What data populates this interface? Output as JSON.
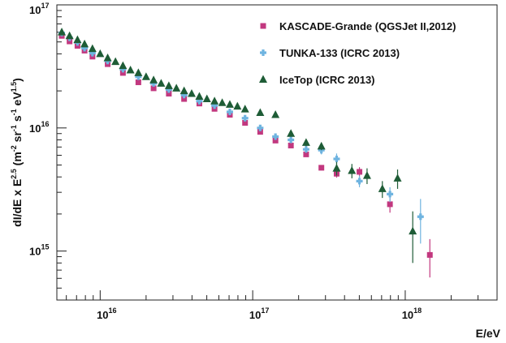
{
  "chart_data": {
    "type": "scatter",
    "xscale": "log",
    "yscale": "log",
    "xlim": [
      5200000000000000.0,
      4e+18
    ],
    "ylim": [
      400000000000000.0,
      1e+17
    ],
    "xlabel": "E/eV",
    "ylabel": {
      "base": "dI/dE x E",
      "exp1": "2.5",
      "mid1": " (m",
      "exp2": "-2",
      "mid2": " sr",
      "exp3": "-1",
      "mid3": " s",
      "exp4": "-1",
      "mid4": " eV",
      "exp5": "1.5",
      "end": ")"
    },
    "xticks": [
      {
        "value": 1e+16,
        "base": "10",
        "exp": "16"
      },
      {
        "value": 1e+17,
        "base": "10",
        "exp": "17"
      },
      {
        "value": 1e+18,
        "base": "10",
        "exp": "18"
      }
    ],
    "yticks": [
      {
        "value": 1000000000000000.0,
        "base": "10",
        "exp": "15"
      },
      {
        "value": 1e+16,
        "base": "10",
        "exp": "16"
      },
      {
        "value": 1e+17,
        "base": "10",
        "exp": "17"
      }
    ],
    "legend_position": "top-right",
    "series": [
      {
        "name": "KASCADE-Grande (QGSJet II,2012)",
        "marker": "square",
        "color": "#c2387f",
        "points": [
          {
            "x": 5600000000000000.0,
            "y": 5.6e+16
          },
          {
            "x": 6300000000000000.0,
            "y": 5.05e+16
          },
          {
            "x": 7100000000000000.0,
            "y": 4.65e+16
          },
          {
            "x": 7900000000000000.0,
            "y": 4.25e+16
          },
          {
            "x": 8900000000000000.0,
            "y": 3.8e+16
          },
          {
            "x": 1.12e+16,
            "y": 3.3e+16
          },
          {
            "x": 1.41e+16,
            "y": 2.8e+16
          },
          {
            "x": 1.78e+16,
            "y": 2.35e+16
          },
          {
            "x": 2.24e+16,
            "y": 2.1e+16
          },
          {
            "x": 2.82e+16,
            "y": 1.9e+16
          },
          {
            "x": 3.55e+16,
            "y": 1.72e+16
          },
          {
            "x": 4.47e+16,
            "y": 1.58e+16
          },
          {
            "x": 5.62e+16,
            "y": 1.43e+16
          },
          {
            "x": 7.08e+16,
            "y": 1.28e+16
          },
          {
            "x": 8.91e+16,
            "y": 1.1e+16
          },
          {
            "x": 1.12e+17,
            "y": 9300000000000000.0
          },
          {
            "x": 1.41e+17,
            "y": 7900000000000000.0
          },
          {
            "x": 1.78e+17,
            "y": 7200000000000000.0
          },
          {
            "x": 2.24e+17,
            "y": 6100000000000000.0
          },
          {
            "x": 2.82e+17,
            "y": 4750000000000000.0,
            "yerr": 200000000000000.0
          },
          {
            "x": 3.55e+17,
            "y": 4250000000000000.0,
            "yerr": 300000000000000.0
          },
          {
            "x": 5.01e+17,
            "y": 4400000000000000.0,
            "yerr": 400000000000000.0
          },
          {
            "x": 7.94e+17,
            "y": 2400000000000000.0,
            "yerr": 350000000000000.0
          },
          {
            "x": 1.45e+18,
            "y": 930000000000000.0,
            "yerr": 320000000000000.0
          }
        ]
      },
      {
        "name": "TUNKA-133 (ICRC 2013)",
        "marker": "cross",
        "color": "#6fb4e0",
        "points": [
          {
            "x": 5600000000000000.0,
            "y": 5.9e+16
          },
          {
            "x": 6300000000000000.0,
            "y": 5.4e+16
          },
          {
            "x": 7100000000000000.0,
            "y": 4.95e+16
          },
          {
            "x": 7900000000000000.0,
            "y": 4.45e+16
          },
          {
            "x": 8900000000000000.0,
            "y": 4.05e+16
          },
          {
            "x": 1.12e+16,
            "y": 3.5e+16
          },
          {
            "x": 1.41e+16,
            "y": 3e+16
          },
          {
            "x": 1.78e+16,
            "y": 2.6e+16
          },
          {
            "x": 2.24e+16,
            "y": 2.3e+16
          },
          {
            "x": 2.82e+16,
            "y": 2.05e+16
          },
          {
            "x": 3.55e+16,
            "y": 1.85e+16
          },
          {
            "x": 4.47e+16,
            "y": 1.65e+16
          },
          {
            "x": 5.62e+16,
            "y": 1.52e+16
          },
          {
            "x": 7.08e+16,
            "y": 1.35e+16
          },
          {
            "x": 8.91e+16,
            "y": 1.2e+16
          },
          {
            "x": 1.12e+17,
            "y": 1e+16
          },
          {
            "x": 1.41e+17,
            "y": 8500000000000000.0
          },
          {
            "x": 1.78e+17,
            "y": 8000000000000000.0
          },
          {
            "x": 2.24e+17,
            "y": 6700000000000000.0
          },
          {
            "x": 2.82e+17,
            "y": 6600000000000000.0,
            "yerr": 500000000000000.0
          },
          {
            "x": 3.55e+17,
            "y": 5600000000000000.0,
            "yerr": 600000000000000.0
          },
          {
            "x": 5.01e+17,
            "y": 3700000000000000.0,
            "yerr": 400000000000000.0
          },
          {
            "x": 7.94e+17,
            "y": 2900000000000000.0,
            "yerr": 400000000000000.0
          },
          {
            "x": 1.26e+18,
            "y": 1900000000000000.0,
            "yerr": 750000000000000.0
          }
        ]
      },
      {
        "name": "IceTop (ICRC 2013)",
        "marker": "triangle",
        "color": "#1e5c36",
        "points": [
          {
            "x": 5600000000000000.0,
            "y": 6e+16
          },
          {
            "x": 6300000000000000.0,
            "y": 5.6e+16
          },
          {
            "x": 7100000000000000.0,
            "y": 5.2e+16
          },
          {
            "x": 7900000000000000.0,
            "y": 4.8e+16
          },
          {
            "x": 8900000000000000.0,
            "y": 4.4e+16
          },
          {
            "x": 1e+16,
            "y": 4e+16
          },
          {
            "x": 1.12e+16,
            "y": 3.7e+16
          },
          {
            "x": 1.26e+16,
            "y": 3.45e+16
          },
          {
            "x": 1.41e+16,
            "y": 3.2e+16
          },
          {
            "x": 1.58e+16,
            "y": 2.95e+16
          },
          {
            "x": 1.78e+16,
            "y": 2.8e+16
          },
          {
            "x": 2e+16,
            "y": 2.6e+16
          },
          {
            "x": 2.24e+16,
            "y": 2.45e+16
          },
          {
            "x": 2.51e+16,
            "y": 2.3e+16
          },
          {
            "x": 2.82e+16,
            "y": 2.2e+16
          },
          {
            "x": 3.16e+16,
            "y": 2.1e+16
          },
          {
            "x": 3.55e+16,
            "y": 2e+16
          },
          {
            "x": 3.98e+16,
            "y": 1.9e+16
          },
          {
            "x": 4.47e+16,
            "y": 1.8e+16
          },
          {
            "x": 5.01e+16,
            "y": 1.72e+16
          },
          {
            "x": 5.62e+16,
            "y": 1.65e+16
          },
          {
            "x": 6.31e+16,
            "y": 1.6e+16
          },
          {
            "x": 7.08e+16,
            "y": 1.55e+16
          },
          {
            "x": 7.94e+16,
            "y": 1.5e+16
          },
          {
            "x": 8.91e+16,
            "y": 1.42e+16
          },
          {
            "x": 1.12e+17,
            "y": 1.33e+16
          },
          {
            "x": 1.41e+17,
            "y": 1.28e+16
          },
          {
            "x": 1.78e+17,
            "y": 9000000000000000.0
          },
          {
            "x": 2.24e+17,
            "y": 7600000000000000.0,
            "yerr": 500000000000000.0
          },
          {
            "x": 2.82e+17,
            "y": 7100000000000000.0,
            "yerr": 500000000000000.0
          },
          {
            "x": 3.55e+17,
            "y": 4700000000000000.0,
            "yerr": 600000000000000.0
          },
          {
            "x": 4.47e+17,
            "y": 4500000000000000.0,
            "yerr": 600000000000000.0
          },
          {
            "x": 5.62e+17,
            "y": 4100000000000000.0,
            "yerr": 600000000000000.0
          },
          {
            "x": 7.08e+17,
            "y": 3200000000000000.0,
            "yerr": 500000000000000.0
          },
          {
            "x": 8.91e+17,
            "y": 3900000000000000.0,
            "yerr": 700000000000000.0
          },
          {
            "x": 1.12e+18,
            "y": 1450000000000000.0,
            "yerr": 650000000000000.0
          }
        ]
      }
    ]
  }
}
